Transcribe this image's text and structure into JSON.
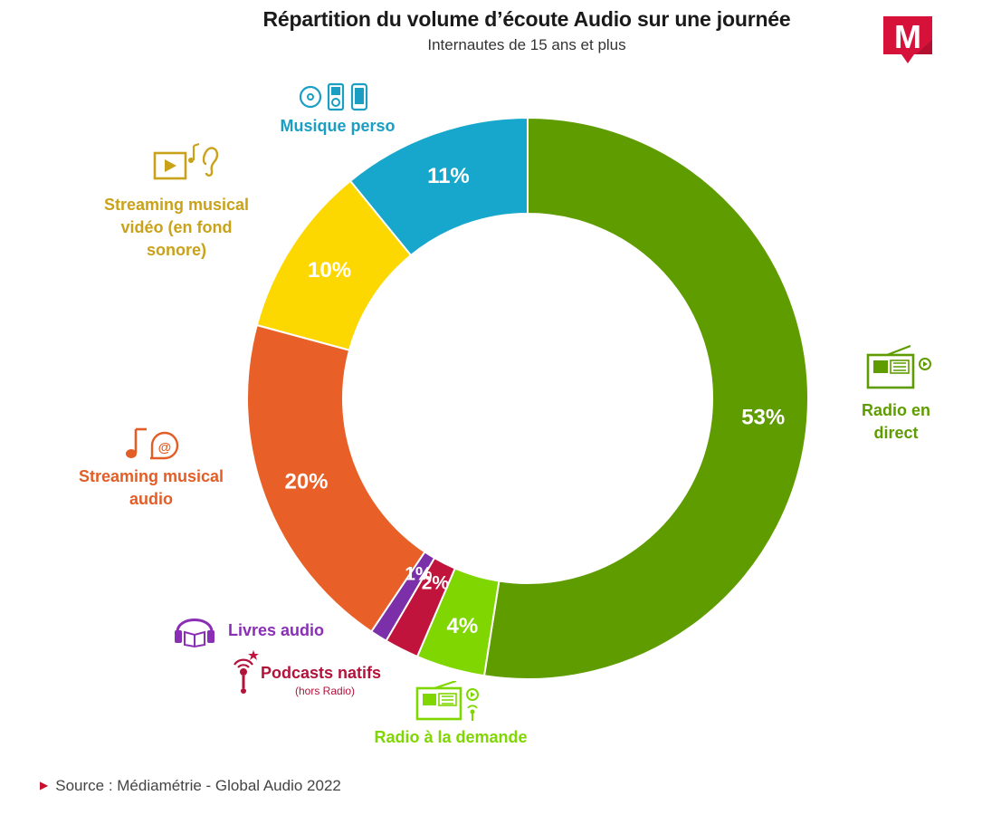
{
  "header": {
    "title": "Répartition du volume d’écoute Audio sur une journée",
    "subtitle": "Internautes de 15 ans et plus",
    "logo_letter": "M"
  },
  "chart_data": {
    "type": "pie",
    "donut": true,
    "title": "Répartition du volume d’écoute Audio sur une journée",
    "subtitle": "Internautes de 15 ans et plus",
    "slices": [
      {
        "label": "Radio en direct",
        "value": 53,
        "display": "53%",
        "color": "#5f9c00",
        "icon": "radio-icon"
      },
      {
        "label": "Radio à la demande",
        "value": 4,
        "display": "4%",
        "color": "#7fd600",
        "icon": "radio-replay-icon"
      },
      {
        "label": "Podcasts natifs",
        "sublabel": "(hors Radio)",
        "value": 2,
        "display": "2%",
        "color": "#c0143c",
        "icon": "microphone-icon"
      },
      {
        "label": "Livres audio",
        "value": 1,
        "display": "1%",
        "color": "#7b2fa8",
        "icon": "headphones-book-icon"
      },
      {
        "label": "Streaming musical audio",
        "value": 20,
        "display": "20%",
        "color": "#e85f28",
        "icon": "music-note-at-icon"
      },
      {
        "label": "Streaming musical vidéo (en fond sonore)",
        "value": 10,
        "display": "10%",
        "color": "#fdd700",
        "icon": "video-play-ear-icon"
      },
      {
        "label": "Musique perso",
        "value": 11,
        "display": "11%",
        "color": "#17a7cc",
        "icon": "cd-ipod-phone-icon"
      }
    ],
    "label_colors": {
      "Radio en direct": "#5f9c00",
      "Radio à la demande": "#7fd600",
      "Podcasts natifs": "#b3123a",
      "Livres audio": "#8a2fb5",
      "Streaming musical audio": "#e35e26",
      "Streaming musical vidéo (en fond sonore)": "#c9a21a",
      "Musique perso": "#1a9ec4"
    }
  },
  "labels": {
    "radio_direct": [
      "Radio en",
      "direct"
    ],
    "radio_demande": "Radio à la demande",
    "podcasts": "Podcasts natifs",
    "podcasts_sub": "(hors Radio)",
    "livres": "Livres audio",
    "streaming_audio": [
      "Streaming musical",
      "audio"
    ],
    "streaming_video": [
      "Streaming musical",
      "vidéo (en fond",
      "sonore)"
    ],
    "musique_perso": "Musique perso"
  },
  "source": {
    "text": "Source : Médiamétrie - Global Audio 2022"
  }
}
